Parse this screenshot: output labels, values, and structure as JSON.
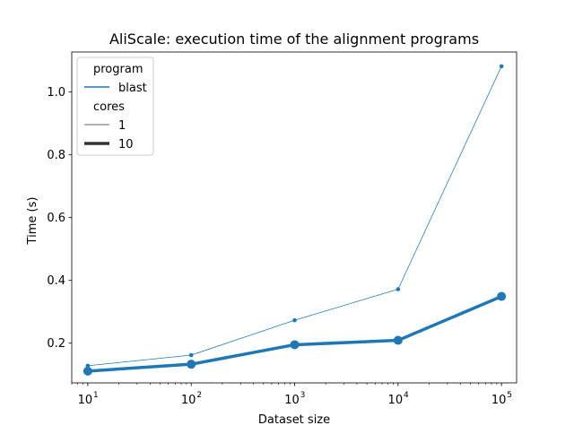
{
  "chart_data": {
    "type": "line",
    "title": "AliScale: execution time of the alignment programs",
    "xlabel": "Dataset size",
    "ylabel": "Time (s)",
    "xscale": "log",
    "x": [
      10,
      100,
      1000,
      10000,
      100000
    ],
    "xticks": [
      {
        "base": "10",
        "exp": "1"
      },
      {
        "base": "10",
        "exp": "2"
      },
      {
        "base": "10",
        "exp": "3"
      },
      {
        "base": "10",
        "exp": "4"
      },
      {
        "base": "10",
        "exp": "5"
      }
    ],
    "yticks": [
      "0.2",
      "0.4",
      "0.6",
      "0.8",
      "1.0"
    ],
    "xlim": [
      7,
      140000
    ],
    "ylim": [
      0.0735,
      1.1275
    ],
    "grid": false,
    "legend_position": "top-left",
    "legend": {
      "program_title": "program",
      "program_entries": [
        "blast"
      ],
      "cores_title": "cores",
      "cores_entries": [
        "1",
        "10"
      ]
    },
    "color": "#1f77b4",
    "series": [
      {
        "program": "blast",
        "cores": "1",
        "values": [
          0.128,
          0.162,
          0.273,
          0.372,
          1.082
        ]
      },
      {
        "program": "blast",
        "cores": "10",
        "values": [
          0.111,
          0.133,
          0.195,
          0.209,
          0.349
        ]
      }
    ]
  }
}
